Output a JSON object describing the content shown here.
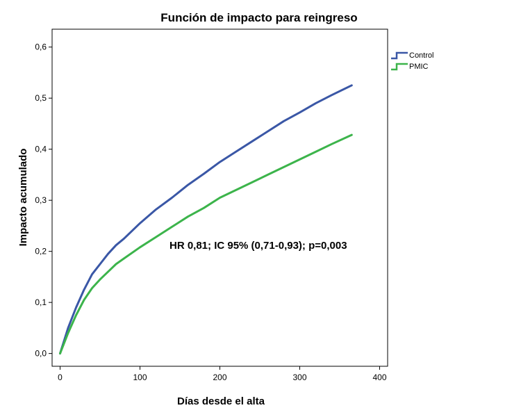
{
  "chart_data": {
    "type": "line",
    "title": "Función de impacto para reingreso",
    "xlabel": "Días desde el alta",
    "ylabel": "Impacto acumulado",
    "xlim": [
      -10,
      410
    ],
    "ylim": [
      -0.025,
      0.635
    ],
    "x_ticks": [
      0,
      100,
      200,
      300,
      400
    ],
    "x_tick_labels": [
      "0",
      "100",
      "200",
      "300",
      "400"
    ],
    "y_ticks": [
      0.0,
      0.1,
      0.2,
      0.3,
      0.4,
      0.5,
      0.6
    ],
    "y_tick_labels": [
      "0,0",
      "0,1",
      "0,2",
      "0,3",
      "0,4",
      "0,5",
      "0,6"
    ],
    "grid": false,
    "legend_position": "top-right, outside plot",
    "annotation": "HR 0,81; IC 95% (0,71-0,93); p=0,003",
    "series": [
      {
        "name": "Control",
        "color": "#3a57a6",
        "x": [
          0,
          10,
          20,
          30,
          40,
          50,
          60,
          70,
          80,
          100,
          120,
          140,
          160,
          180,
          200,
          220,
          240,
          260,
          280,
          300,
          320,
          340,
          365
        ],
        "y": [
          0.0,
          0.05,
          0.09,
          0.125,
          0.155,
          0.175,
          0.195,
          0.212,
          0.225,
          0.255,
          0.282,
          0.305,
          0.33,
          0.352,
          0.375,
          0.395,
          0.415,
          0.435,
          0.455,
          0.472,
          0.49,
          0.506,
          0.525
        ]
      },
      {
        "name": "PMIC",
        "color": "#3cb44b",
        "x": [
          0,
          10,
          20,
          30,
          40,
          50,
          60,
          70,
          80,
          100,
          120,
          140,
          160,
          180,
          200,
          220,
          240,
          260,
          280,
          300,
          320,
          340,
          365
        ],
        "y": [
          0.0,
          0.04,
          0.075,
          0.105,
          0.128,
          0.145,
          0.16,
          0.175,
          0.186,
          0.208,
          0.228,
          0.248,
          0.268,
          0.285,
          0.305,
          0.32,
          0.335,
          0.35,
          0.365,
          0.38,
          0.395,
          0.41,
          0.428
        ]
      }
    ]
  }
}
